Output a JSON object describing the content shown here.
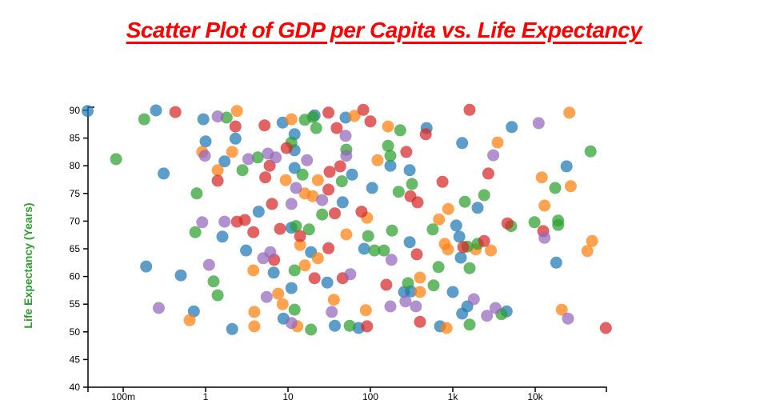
{
  "title": {
    "text": "Scatter Plot of GDP per Capita vs. Life Expectancy",
    "color": "#ff0000"
  },
  "chart_data": {
    "type": "scatter",
    "title": "Scatter Plot of GDP per Capita vs. Life Expectancy",
    "xlabel": "",
    "ylabel": "Life Expectancy (Years)",
    "ylabel_color": "#2ca02c",
    "x_scale": "log",
    "grid": false,
    "legend": false,
    "marker_opacity": 0.72,
    "marker_radius": 7.5,
    "axis_color": "#000000",
    "xlim": [
      0.037,
      73000
    ],
    "ylim": [
      40,
      90.6
    ],
    "x_ticks": [
      {
        "value": 0.1,
        "label": "100m"
      },
      {
        "value": 1,
        "label": "1"
      },
      {
        "value": 10,
        "label": "10"
      },
      {
        "value": 100,
        "label": "100"
      },
      {
        "value": 1000,
        "label": "1k"
      },
      {
        "value": 10000,
        "label": "10k"
      }
    ],
    "y_ticks": [
      40,
      45,
      50,
      55,
      60,
      65,
      70,
      75,
      80,
      85,
      90
    ],
    "series": [
      {
        "name": "blue",
        "color": "#1f77b4",
        "points": [
          [
            0.037,
            89.9
          ],
          [
            0.25,
            90
          ],
          [
            0.94,
            88.4
          ],
          [
            1.0,
            84.4
          ],
          [
            2.3,
            84.9
          ],
          [
            1.7,
            80.8
          ],
          [
            0.31,
            78.6
          ],
          [
            4.4,
            71.7
          ],
          [
            8.6,
            87.8
          ],
          [
            21,
            89.1
          ],
          [
            12,
            85.7
          ],
          [
            50,
            88.7
          ],
          [
            12,
            82.8
          ],
          [
            12,
            79.6
          ],
          [
            60,
            78.4
          ],
          [
            46,
            73.4
          ],
          [
            105,
            76
          ],
          [
            175,
            80
          ],
          [
            300,
            79.2
          ],
          [
            480,
            86.8
          ],
          [
            5200,
            87
          ],
          [
            1300,
            84.1
          ],
          [
            24000,
            79.9
          ],
          [
            2000,
            72.4
          ],
          [
            1100,
            69.2
          ],
          [
            0.19,
            61.8
          ],
          [
            0.5,
            60.2
          ],
          [
            1.6,
            67.2
          ],
          [
            3.1,
            64.7
          ],
          [
            0.72,
            53.7
          ],
          [
            2.1,
            50.5
          ],
          [
            11,
            68.8
          ],
          [
            19,
            64.4
          ],
          [
            6.7,
            60.7
          ],
          [
            30,
            58.9
          ],
          [
            11,
            57.9
          ],
          [
            8.8,
            52.4
          ],
          [
            37,
            51.1
          ],
          [
            72,
            50.7
          ],
          [
            84,
            65
          ],
          [
            256,
            57.2
          ],
          [
            310,
            57.3
          ],
          [
            300,
            66.2
          ],
          [
            1200,
            67.2
          ],
          [
            1250,
            63.4
          ],
          [
            1000,
            57.2
          ],
          [
            1500,
            54.6
          ],
          [
            1300,
            53.3
          ],
          [
            4500,
            53.7
          ],
          [
            18000,
            62.5
          ],
          [
            700,
            51
          ]
        ]
      },
      {
        "name": "orange",
        "color": "#ff7f0e",
        "points": [
          [
            2.4,
            89.9
          ],
          [
            0.91,
            82.5
          ],
          [
            2.1,
            82.5
          ],
          [
            1.4,
            79.2
          ],
          [
            11,
            88.4
          ],
          [
            64,
            89
          ],
          [
            9.4,
            77.4
          ],
          [
            16,
            75
          ],
          [
            20,
            74.5
          ],
          [
            23,
            77.4
          ],
          [
            122,
            81
          ],
          [
            164,
            87.1
          ],
          [
            680,
            70.3
          ],
          [
            3500,
            84.2
          ],
          [
            26000,
            89.6
          ],
          [
            12000,
            77.9
          ],
          [
            27000,
            76.3
          ],
          [
            13000,
            72.8
          ],
          [
            880,
            72.2
          ],
          [
            14,
            65.7
          ],
          [
            23,
            63.3
          ],
          [
            16,
            62
          ],
          [
            7.6,
            56.9
          ],
          [
            8.6,
            55
          ],
          [
            13,
            51
          ],
          [
            36,
            55.8
          ],
          [
            88,
            53.9
          ],
          [
            51,
            67.6
          ],
          [
            400,
            59.8
          ],
          [
            400,
            57.2
          ],
          [
            0.64,
            52.1
          ],
          [
            3.9,
            53.6
          ],
          [
            3.9,
            51
          ],
          [
            3.8,
            61.1
          ],
          [
            800,
            65.9
          ],
          [
            875,
            64.9
          ],
          [
            1900,
            64.9
          ],
          [
            2900,
            64.7
          ],
          [
            840,
            50.7
          ],
          [
            21000,
            54
          ],
          [
            49000,
            66.4
          ],
          [
            43000,
            64.6
          ],
          [
            91,
            70.6
          ]
        ]
      },
      {
        "name": "green",
        "color": "#2ca02c",
        "points": [
          [
            0.18,
            88.4
          ],
          [
            1.8,
            88.7
          ],
          [
            0.082,
            81.2
          ],
          [
            4.3,
            81.5
          ],
          [
            2.8,
            79.2
          ],
          [
            0.78,
            75
          ],
          [
            16,
            88.3
          ],
          [
            20,
            88.8
          ],
          [
            22,
            86.8
          ],
          [
            11,
            84.2
          ],
          [
            51,
            82.9
          ],
          [
            15,
            78.4
          ],
          [
            45,
            77.2
          ],
          [
            26,
            71.2
          ],
          [
            164,
            83.6
          ],
          [
            175,
            81.8
          ],
          [
            220,
            75.3
          ],
          [
            320,
            76.7
          ],
          [
            230,
            86.4
          ],
          [
            47000,
            82.6
          ],
          [
            17500,
            76
          ],
          [
            2400,
            74.7
          ],
          [
            1400,
            73.5
          ],
          [
            9800,
            69.8
          ],
          [
            5100,
            69.1
          ],
          [
            19000,
            70.1
          ],
          [
            19000,
            69.3
          ],
          [
            0.75,
            68
          ],
          [
            1.25,
            59.1
          ],
          [
            1.4,
            56.6
          ],
          [
            12.5,
            69.1
          ],
          [
            18,
            68.5
          ],
          [
            94,
            67.3
          ],
          [
            183,
            68.3
          ],
          [
            112,
            64.7
          ],
          [
            146,
            64.7
          ],
          [
            12,
            61.1
          ],
          [
            12,
            54
          ],
          [
            19,
            50.4
          ],
          [
            56,
            51.1
          ],
          [
            286,
            58.8
          ],
          [
            585,
            58.4
          ],
          [
            670,
            61.7
          ],
          [
            570,
            68.5
          ],
          [
            1500,
            65.4
          ],
          [
            2000,
            65.9
          ],
          [
            1600,
            61.5
          ],
          [
            1600,
            51.3
          ],
          [
            3900,
            53.2
          ]
        ]
      },
      {
        "name": "red",
        "color": "#d62728",
        "points": [
          [
            0.43,
            89.7
          ],
          [
            2.3,
            87.1
          ],
          [
            5.2,
            87.3
          ],
          [
            1.4,
            77.3
          ],
          [
            2.4,
            69.9
          ],
          [
            3.0,
            70.2
          ],
          [
            3.8,
            68
          ],
          [
            31,
            89.6
          ],
          [
            39,
            86.8
          ],
          [
            82,
            90.1
          ],
          [
            100,
            88
          ],
          [
            9.6,
            83.2
          ],
          [
            6.0,
            80
          ],
          [
            5.3,
            77.9
          ],
          [
            31,
            75.7
          ],
          [
            32,
            78.9
          ],
          [
            43,
            79.9
          ],
          [
            6.4,
            73.1
          ],
          [
            37,
            71.4
          ],
          [
            78,
            71.7
          ],
          [
            273,
            82.5
          ],
          [
            470,
            85.7
          ],
          [
            306,
            74.5
          ],
          [
            374,
            73.4
          ],
          [
            1600,
            90.1
          ],
          [
            750,
            77.1
          ],
          [
            2700,
            78.6
          ],
          [
            8,
            68.6
          ],
          [
            14,
            67.3
          ],
          [
            6.8,
            63
          ],
          [
            31,
            65.1
          ],
          [
            21,
            59.7
          ],
          [
            46,
            59.7
          ],
          [
            91,
            51
          ],
          [
            156,
            58.5
          ],
          [
            366,
            64
          ],
          [
            400,
            51.8
          ],
          [
            2400,
            66.4
          ],
          [
            1340,
            65.3
          ],
          [
            4600,
            69.6
          ],
          [
            12500,
            68.2
          ],
          [
            72000,
            50.7
          ]
        ]
      },
      {
        "name": "purple",
        "color": "#9467bd",
        "points": [
          [
            1.4,
            88.9
          ],
          [
            0.98,
            81.8
          ],
          [
            3.3,
            81.2
          ],
          [
            0.91,
            69.8
          ],
          [
            1.7,
            69.9
          ],
          [
            50,
            85.4
          ],
          [
            51,
            81.8
          ],
          [
            5.7,
            82.2
          ],
          [
            7.1,
            81.5
          ],
          [
            17,
            81
          ],
          [
            12.5,
            76
          ],
          [
            26,
            73.8
          ],
          [
            11,
            73.1
          ],
          [
            11000,
            87.7
          ],
          [
            3100,
            81.9
          ],
          [
            13000,
            67
          ],
          [
            0.27,
            54.3
          ],
          [
            1.1,
            62.1
          ],
          [
            6.1,
            64.4
          ],
          [
            5.0,
            63.3
          ],
          [
            57,
            60.4
          ],
          [
            180,
            63
          ],
          [
            5.5,
            56.3
          ],
          [
            11,
            51.6
          ],
          [
            34,
            53.6
          ],
          [
            175,
            54.6
          ],
          [
            267,
            55.5
          ],
          [
            357,
            54.6
          ],
          [
            1800,
            55.9
          ],
          [
            2600,
            52.9
          ],
          [
            3300,
            54.3
          ],
          [
            25000,
            52.4
          ]
        ]
      }
    ]
  }
}
